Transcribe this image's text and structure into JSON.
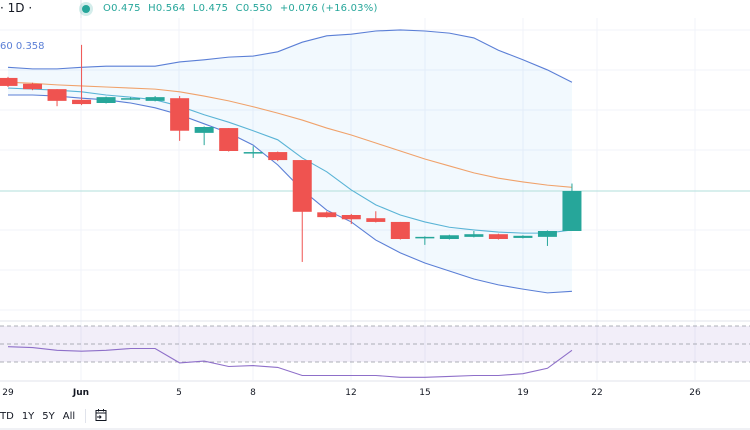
{
  "header": {
    "timeframe": "· 1D ·",
    "ohlc": {
      "open": "O0.475",
      "high": "H0.564",
      "low": "L0.475",
      "close": "C0.550",
      "change": "+0.076 (+16.03%)"
    },
    "bb_label": "60 0.358"
  },
  "toolbar": {
    "ranges": [
      "TD",
      "1Y",
      "5Y",
      "All"
    ],
    "calendar_icon": "calendar-goto-icon"
  },
  "colors": {
    "up": "#26a69a",
    "down": "#ef5350",
    "bb_band": "#5b7fd6",
    "bb_basis": "#f0a26b",
    "ma": "#5ab4d6",
    "rsi": "#8e6fc9",
    "last_price_line": "#b2dfdb"
  },
  "chart_data": {
    "type": "candlestick",
    "x_ticks": [
      "29",
      "Jun",
      "5",
      "8",
      "12",
      "15",
      "19",
      "22",
      "26"
    ],
    "dates": [
      "May 29",
      "May 30",
      "May 31",
      "Jun 1",
      "Jun 2",
      "Jun 3",
      "Jun 4",
      "Jun 5",
      "Jun 6",
      "Jun 7",
      "Jun 8",
      "Jun 9",
      "Jun 10",
      "Jun 11",
      "Jun 12",
      "Jun 13",
      "Jun 14",
      "Jun 15",
      "Jun 16",
      "Jun 17",
      "Jun 18",
      "Jun 19",
      "Jun 20",
      "Jun 21"
    ],
    "ohlc": [
      [
        0.762,
        0.764,
        0.745,
        0.747
      ],
      [
        0.751,
        0.753,
        0.739,
        0.741
      ],
      [
        0.741,
        0.741,
        0.709,
        0.719
      ],
      [
        0.721,
        0.824,
        0.711,
        0.713
      ],
      [
        0.715,
        0.727,
        0.714,
        0.726
      ],
      [
        0.723,
        0.726,
        0.721,
        0.724
      ],
      [
        0.719,
        0.728,
        0.718,
        0.726
      ],
      [
        0.724,
        0.728,
        0.644,
        0.663
      ],
      [
        0.659,
        0.671,
        0.636,
        0.67
      ],
      [
        0.668,
        0.668,
        0.624,
        0.625
      ],
      [
        0.622,
        0.634,
        0.612,
        0.623
      ],
      [
        0.623,
        0.624,
        0.606,
        0.608
      ],
      [
        0.608,
        0.608,
        0.417,
        0.511
      ],
      [
        0.51,
        0.512,
        0.5,
        0.501
      ],
      [
        0.505,
        0.507,
        0.488,
        0.497
      ],
      [
        0.499,
        0.512,
        0.491,
        0.492
      ],
      [
        0.492,
        0.492,
        0.459,
        0.46
      ],
      [
        0.462,
        0.465,
        0.449,
        0.464
      ],
      [
        0.46,
        0.468,
        0.459,
        0.467
      ],
      [
        0.464,
        0.475,
        0.463,
        0.469
      ],
      [
        0.469,
        0.47,
        0.459,
        0.46
      ],
      [
        0.462,
        0.467,
        0.461,
        0.466
      ],
      [
        0.464,
        0.476,
        0.447,
        0.475
      ],
      [
        0.475,
        0.564,
        0.475,
        0.55
      ]
    ],
    "bb_upper": [
      0.782,
      0.779,
      0.779,
      0.782,
      0.784,
      0.784,
      0.784,
      0.792,
      0.796,
      0.801,
      0.803,
      0.811,
      0.829,
      0.841,
      0.844,
      0.85,
      0.852,
      0.85,
      0.846,
      0.837,
      0.814,
      0.796,
      0.777,
      0.754
    ],
    "bb_basis": [
      0.754,
      0.752,
      0.749,
      0.747,
      0.745,
      0.743,
      0.741,
      0.736,
      0.728,
      0.719,
      0.708,
      0.696,
      0.683,
      0.668,
      0.655,
      0.64,
      0.625,
      0.61,
      0.597,
      0.584,
      0.574,
      0.567,
      0.561,
      0.557
    ],
    "bb_lower": [
      0.73,
      0.73,
      0.728,
      0.724,
      0.721,
      0.715,
      0.706,
      0.693,
      0.676,
      0.659,
      0.636,
      0.599,
      0.552,
      0.514,
      0.492,
      0.458,
      0.434,
      0.415,
      0.4,
      0.385,
      0.374,
      0.366,
      0.359,
      0.362
    ],
    "ma": [
      0.743,
      0.741,
      0.739,
      0.736,
      0.73,
      0.726,
      0.721,
      0.709,
      0.693,
      0.679,
      0.663,
      0.646,
      0.612,
      0.586,
      0.552,
      0.524,
      0.505,
      0.492,
      0.482,
      0.477,
      0.473,
      0.471,
      0.471,
      0.477
    ],
    "rsi": [
      47,
      46,
      43,
      42,
      43,
      45,
      45,
      29,
      31,
      25,
      26,
      24,
      15,
      15,
      15,
      15,
      13,
      13,
      14,
      15,
      15,
      17,
      23,
      43
    ],
    "rsi_levels": [
      70,
      50,
      30
    ],
    "last_price": 0.55,
    "grid": true
  }
}
